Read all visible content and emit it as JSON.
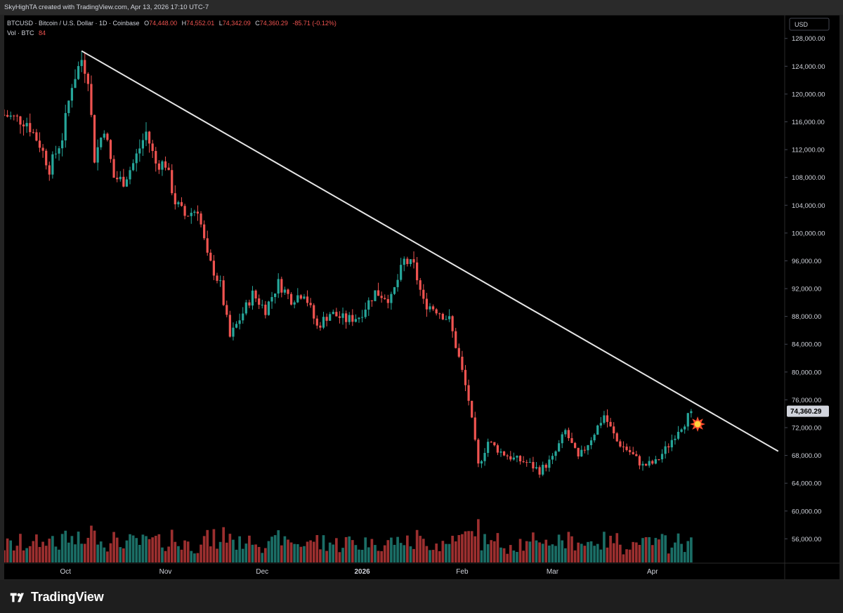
{
  "header": {
    "credit": "SkyHighTA created with TradingView.com, Apr 13, 2026 17:10 UTC-7"
  },
  "legend": {
    "symbol": "BTCUSD · Bitcoin / U.S. Dollar · 1D · Coinbase",
    "open_label": "O",
    "open": "74,448.00",
    "high_label": "H",
    "high": "74,552.01",
    "low_label": "L",
    "low": "74,342.09",
    "close_label": "C",
    "close": "74,360.29",
    "change": "-85.71 (-0.12%)",
    "vol_label": "Vol · BTC",
    "vol_value": "84"
  },
  "currency": "USD",
  "last_price_label": "74,360.29",
  "brand": "TradingView",
  "colors": {
    "up": "#26a69a",
    "down": "#ef5350",
    "vol_up": "#1b6e66",
    "vol_down": "#9c2f2f",
    "trendline": "#e6e6e6",
    "background": "#000000"
  },
  "icons": {
    "brand": "tradingview-logo-icon",
    "breakout": "explosion-icon"
  },
  "chart_data": {
    "type": "candlestick",
    "symbol": "BTCUSD",
    "interval": "1D",
    "y_ticks": [
      "128,000.00",
      "124,000.00",
      "120,000.00",
      "116,000.00",
      "112,000.00",
      "108,000.00",
      "104,000.00",
      "100,000.00",
      "96,000.00",
      "92,000.00",
      "88,000.00",
      "84,000.00",
      "80,000.00",
      "76,000.00",
      "72,000.00",
      "68,000.00",
      "64,000.00",
      "60,000.00",
      "56,000.00"
    ],
    "y_tick_values": [
      128000,
      124000,
      120000,
      116000,
      112000,
      108000,
      104000,
      100000,
      96000,
      92000,
      88000,
      84000,
      80000,
      76000,
      72000,
      68000,
      64000,
      60000,
      56000
    ],
    "x_ticks": [
      "Oct",
      "Nov",
      "Dec",
      "2026",
      "Feb",
      "Mar",
      "Apr"
    ],
    "x_tick_dates": [
      "2025-10-01",
      "2025-11-01",
      "2025-12-01",
      "2026-01-01",
      "2026-02-01",
      "2026-03-01",
      "2026-04-01"
    ],
    "x_range": [
      "2025-09-12",
      "2026-05-12"
    ],
    "y_range": [
      52500,
      130500
    ],
    "trendline": {
      "start": {
        "date": "2025-10-06",
        "price": 126200
      },
      "end": {
        "date": "2026-05-10",
        "price": 68600
      }
    },
    "breakout_marker": {
      "date": "2026-04-15",
      "price": 72500
    },
    "closes": [
      [
        "2025-09-12",
        117000
      ],
      [
        "2025-09-19",
        116000
      ],
      [
        "2025-09-23",
        112800
      ],
      [
        "2025-09-26",
        109300
      ],
      [
        "2025-09-30",
        113800
      ],
      [
        "2025-10-03",
        121500
      ],
      [
        "2025-10-06",
        125000
      ],
      [
        "2025-10-08",
        122500
      ],
      [
        "2025-10-10",
        110800
      ],
      [
        "2025-10-13",
        115200
      ],
      [
        "2025-10-16",
        108000
      ],
      [
        "2025-10-19",
        107500
      ],
      [
        "2025-10-22",
        110000
      ],
      [
        "2025-10-26",
        114500
      ],
      [
        "2025-10-29",
        110000
      ],
      [
        "2025-11-01",
        110000
      ],
      [
        "2025-11-04",
        104500
      ],
      [
        "2025-11-07",
        102500
      ],
      [
        "2025-11-11",
        103500
      ],
      [
        "2025-11-14",
        96500
      ],
      [
        "2025-11-18",
        92500
      ],
      [
        "2025-11-21",
        85000
      ],
      [
        "2025-11-25",
        88500
      ],
      [
        "2025-11-28",
        91200
      ],
      [
        "2025-12-02",
        89000
      ],
      [
        "2025-12-06",
        92800
      ],
      [
        "2025-12-10",
        90500
      ],
      [
        "2025-12-14",
        91500
      ],
      [
        "2025-12-18",
        86500
      ],
      [
        "2025-12-22",
        88500
      ],
      [
        "2025-12-27",
        87500
      ],
      [
        "2025-12-31",
        88000
      ],
      [
        "2026-01-05",
        91500
      ],
      [
        "2026-01-10",
        90500
      ],
      [
        "2026-01-14",
        96000
      ],
      [
        "2026-01-17",
        95200
      ],
      [
        "2026-01-20",
        90000
      ],
      [
        "2026-01-24",
        89000
      ],
      [
        "2026-01-28",
        87500
      ],
      [
        "2026-01-31",
        82000
      ],
      [
        "2026-02-03",
        76000
      ],
      [
        "2026-02-06",
        66500
      ],
      [
        "2026-02-09",
        70000
      ],
      [
        "2026-02-13",
        68500
      ],
      [
        "2026-02-17",
        67500
      ],
      [
        "2026-02-21",
        67000
      ],
      [
        "2026-02-25",
        65800
      ],
      [
        "2026-03-01",
        67500
      ],
      [
        "2026-03-05",
        71500
      ],
      [
        "2026-03-09",
        67500
      ],
      [
        "2026-03-13",
        70500
      ],
      [
        "2026-03-17",
        73800
      ],
      [
        "2026-03-21",
        70000
      ],
      [
        "2026-03-25",
        68500
      ],
      [
        "2026-03-29",
        66500
      ],
      [
        "2026-04-02",
        67000
      ],
      [
        "2026-04-06",
        69500
      ],
      [
        "2026-04-09",
        71800
      ],
      [
        "2026-04-11",
        72800
      ],
      [
        "2026-04-13",
        74360.29
      ]
    ]
  }
}
